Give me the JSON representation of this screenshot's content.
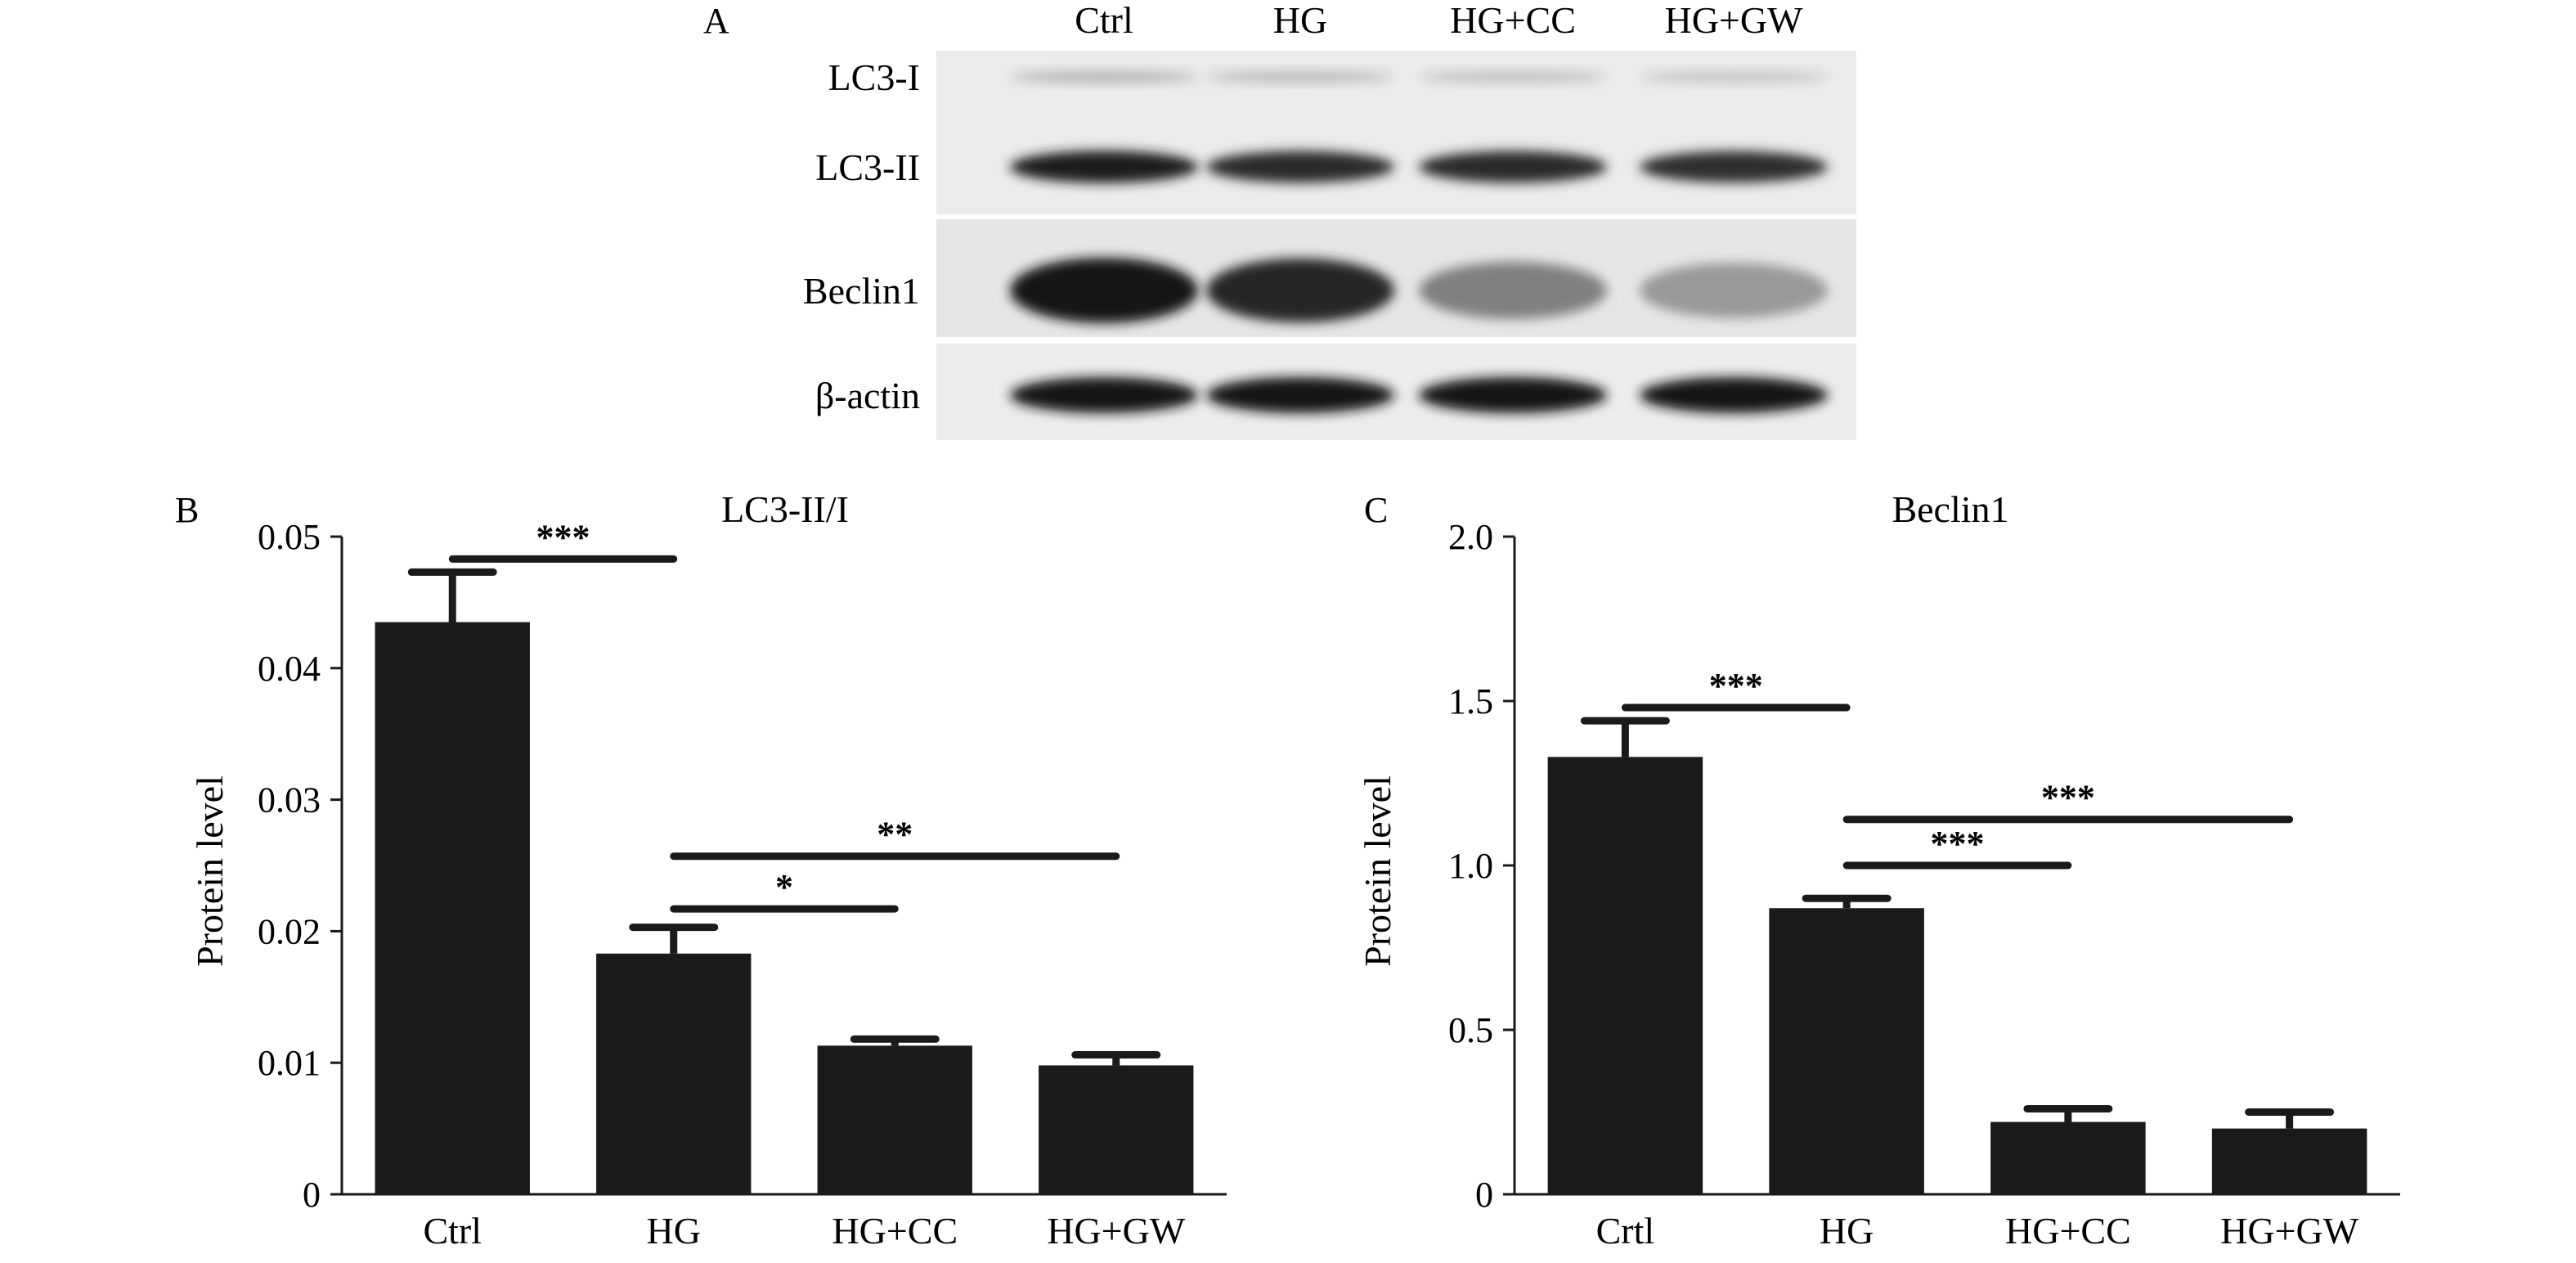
{
  "panel_a": {
    "letter": "A",
    "lanes": [
      "Ctrl",
      "HG",
      "HG+CC",
      "HG+GW"
    ],
    "rows": [
      {
        "label": "LC3-I",
        "intensity": [
          0.25,
          0.22,
          0.2,
          0.18
        ]
      },
      {
        "label": "LC3-II",
        "intensity": [
          0.95,
          0.9,
          0.9,
          0.88
        ]
      },
      {
        "label": "Beclin1",
        "intensity": [
          1.0,
          0.92,
          0.5,
          0.38
        ]
      },
      {
        "label": "β-actin",
        "intensity": [
          1.0,
          1.0,
          1.0,
          1.0
        ]
      }
    ]
  },
  "chart_data": [
    {
      "type": "bar",
      "panel": "B",
      "title": "LC3-II/I",
      "ylabel": "Protein level",
      "xlabel": "",
      "categories": [
        "Ctrl",
        "HG",
        "HG+CC",
        "HG+GW"
      ],
      "values": [
        0.0435,
        0.0183,
        0.0113,
        0.0098
      ],
      "errors": [
        0.0038,
        0.002,
        0.0005,
        0.0008
      ],
      "ylim": [
        0,
        0.05
      ],
      "yticks": [
        "0",
        "0.01",
        "0.02",
        "0.03",
        "0.04",
        "0.05"
      ],
      "ytick_values": [
        0,
        0.01,
        0.02,
        0.03,
        0.04,
        0.05
      ],
      "grid": false,
      "bar_color": "#1a1a1a",
      "significance": [
        {
          "from": 0,
          "to": 1,
          "y": 0.0483,
          "label": "***"
        },
        {
          "from": 1,
          "to": 2,
          "y": 0.0217,
          "label": "*"
        },
        {
          "from": 1,
          "to": 3,
          "y": 0.0257,
          "label": "**"
        }
      ]
    },
    {
      "type": "bar",
      "panel": "C",
      "title": "Beclin1",
      "ylabel": "Protein level",
      "xlabel": "",
      "categories": [
        "Crtl",
        "HG",
        "HG+CC",
        "HG+GW"
      ],
      "values": [
        1.33,
        0.87,
        0.22,
        0.2
      ],
      "errors": [
        0.11,
        0.03,
        0.04,
        0.05
      ],
      "ylim": [
        0,
        2.0
      ],
      "yticks": [
        "0",
        "0.5",
        "1.0",
        "1.5",
        "2.0"
      ],
      "ytick_values": [
        0,
        0.5,
        1.0,
        1.5,
        2.0
      ],
      "grid": false,
      "bar_color": "#1a1a1a",
      "significance": [
        {
          "from": 0,
          "to": 1,
          "y": 1.48,
          "label": "***"
        },
        {
          "from": 1,
          "to": 2,
          "y": 1.0,
          "label": "***"
        },
        {
          "from": 1,
          "to": 3,
          "y": 1.14,
          "label": "***"
        }
      ]
    }
  ]
}
